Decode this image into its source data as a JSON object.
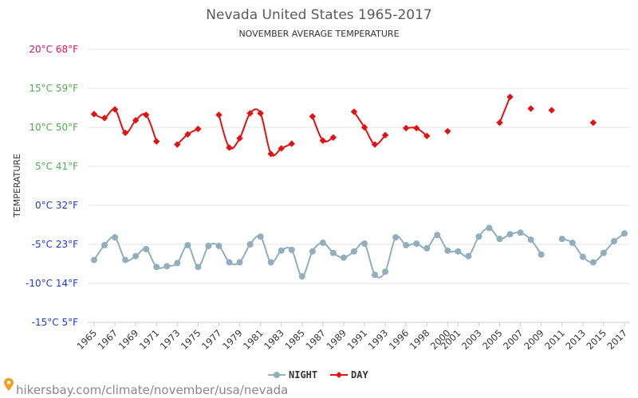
{
  "chart_data": {
    "type": "line",
    "title": "Nevada United States 1965-2017",
    "subtitle": "NOVEMBER AVERAGE TEMPERATURE",
    "ylabel": "TEMPERATURE",
    "ylim": [
      -15,
      20
    ],
    "yticks": [
      {
        "value": 20,
        "label": "20°C 68°F",
        "color": "#e0105a"
      },
      {
        "value": 15,
        "label": "15°C 59°F",
        "color": "#4caf50"
      },
      {
        "value": 10,
        "label": "10°C 50°F",
        "color": "#4caf50"
      },
      {
        "value": 5,
        "label": "5°C 41°F",
        "color": "#4caf50"
      },
      {
        "value": 0,
        "label": "0°C 32°F",
        "color": "#1a3ad6"
      },
      {
        "value": -5,
        "label": "-5°C 23°F",
        "color": "#1a3ad6"
      },
      {
        "value": -10,
        "label": "-10°C 14°F",
        "color": "#1a3ad6"
      },
      {
        "value": -15,
        "label": "-15°C 5°F",
        "color": "#1a3ad6"
      }
    ],
    "categories": [
      "1965",
      "1966",
      "1967",
      "1968",
      "1969",
      "1970",
      "1971",
      "1972",
      "1973",
      "1974",
      "1975",
      "1976",
      "1977",
      "1978",
      "1979",
      "1980",
      "1981",
      "1982",
      "1983",
      "1984",
      "1985",
      "1986",
      "1987",
      "1988",
      "1989",
      "1990",
      "1991",
      "1992",
      "1993",
      "1994",
      "1996",
      "1997",
      "1998",
      "1999",
      "2000",
      "2001",
      "2002",
      "2003",
      "2004",
      "2005",
      "2006",
      "2007",
      "2008",
      "2009",
      "2010",
      "2011",
      "2012",
      "2013",
      "2014",
      "2015",
      "2016",
      "2017"
    ],
    "tick_labels": [
      "1965",
      "1967",
      "1969",
      "1971",
      "1973",
      "1975",
      "1977",
      "1979",
      "1981",
      "1983",
      "1985",
      "1987",
      "1989",
      "1991",
      "1993",
      "1996",
      "1998",
      "2000",
      "2001",
      "2003",
      "2005",
      "2007",
      "2009",
      "2011",
      "2013",
      "2015",
      "2017"
    ],
    "series": [
      {
        "name": "NIGHT",
        "color": "#90aebb",
        "marker": "circle",
        "values": [
          -7.0,
          -5.1,
          -4.1,
          -7.0,
          -6.5,
          -5.6,
          -7.9,
          -7.8,
          -7.4,
          -5.1,
          -7.9,
          -5.2,
          -5.2,
          -7.3,
          -7.3,
          -5.0,
          -4.0,
          -7.3,
          -5.8,
          -5.7,
          -9.1,
          -5.9,
          -4.8,
          -6.1,
          -6.7,
          -5.9,
          -4.9,
          -8.9,
          -8.5,
          -4.1,
          -5.1,
          -4.9,
          -5.5,
          -3.8,
          -5.8,
          -5.9,
          -6.5,
          -4.0,
          -2.9,
          -4.3,
          -3.7,
          -3.5,
          -4.4,
          -6.3,
          null,
          -4.3,
          -4.8,
          -6.6,
          -7.3,
          -6.1,
          -4.6,
          -3.6
        ]
      },
      {
        "name": "DAY",
        "color": "#e51010",
        "marker": "diamond",
        "values": [
          11.7,
          11.2,
          12.3,
          9.3,
          10.9,
          11.6,
          8.2,
          null,
          7.8,
          9.1,
          9.8,
          null,
          11.6,
          7.4,
          8.6,
          11.8,
          11.8,
          6.6,
          7.3,
          7.9,
          null,
          11.4,
          8.3,
          8.7,
          null,
          12.0,
          10.0,
          7.8,
          9.0,
          null,
          9.9,
          9.9,
          8.9,
          null,
          9.5,
          null,
          null,
          null,
          null,
          10.6,
          13.9,
          null,
          12.4,
          null,
          12.2,
          null,
          null,
          null,
          10.6,
          null,
          null,
          null
        ]
      }
    ],
    "legend": "bottom"
  },
  "footer": "hikersbay.com/climate/november/usa/nevada"
}
